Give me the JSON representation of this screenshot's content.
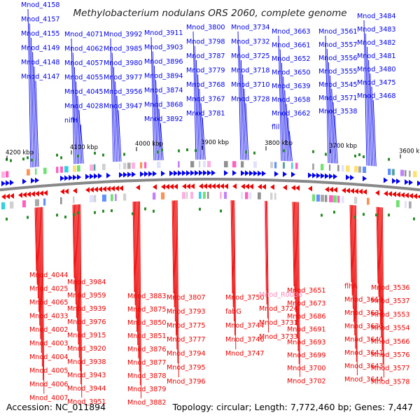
{
  "title": "Methylobacterium nodulans ORS 2060, complete genome",
  "footer": {
    "accession": "Accession: NC_011894",
    "summary": "Topology: circular; Length: 7,772,460 bp; Genes: 7,447"
  },
  "colors": {
    "plus_strand": "#0000ee",
    "minus_strand": "#ee0000",
    "rna_label": "#ff88bb",
    "backbone": "#888888",
    "gc_tick": "#2a8a2a"
  },
  "scale_labels": [
    "4200 kbp",
    "4100 kbp",
    "4000 kbp",
    "3900 kbp",
    "3800 kbp",
    "3700 kbp",
    "3600 kbp"
  ],
  "top_labels": [
    "Mnod_4158",
    "Mnod_4157",
    "Mnod_4155",
    "Mnod_4149",
    "Mnod_4148",
    "Mnod_4147",
    "Mnod_4071",
    "Mnod_4062",
    "Mnod_4057",
    "Mnod_4055",
    "Mnod_4045",
    "Mnod_4028",
    "nifH",
    "Mnod_3992",
    "Mnod_3985",
    "Mnod_3980",
    "Mnod_3977",
    "Mnod_3956",
    "Mnod_3947",
    "Mnod_3911",
    "Mnod_3903",
    "Mnod_3896",
    "Mnod_3894",
    "Mnod_3874",
    "Mnod_3868",
    "Mnod_3892",
    "Mnod_3800",
    "Mnod_3798",
    "Mnod_3787",
    "Mnod_3779",
    "Mnod_3768",
    "Mnod_3767",
    "Mnod_3781",
    "Mnod_3734",
    "Mnod_3732",
    "Mnod_3725",
    "Mnod_3718",
    "Mnod_3710",
    "Mnod_3728",
    "Mnod_3663",
    "Mnod_3661",
    "Mnod_3652",
    "Mnod_3650",
    "Mnod_3639",
    "Mnod_3658",
    "Mnod_3662",
    "flil",
    "Mnod_3561",
    "Mnod_3557",
    "Mnod_3556",
    "Mnod_3555",
    "Mnod_3545",
    "Mnod_3571",
    "Mnod_3538",
    "Mnod_3484",
    "Mnod_3483",
    "Mnod_3482",
    "Mnod_3481",
    "Mnod_3480",
    "Mnod_3475",
    "Mnod_3468"
  ],
  "bottom_labels": [
    "Mnod_4044",
    "Mnod_4025",
    "Mnod_4065",
    "Mnod_4033",
    "Mnod_4002",
    "Mnod_4003",
    "Mnod_4004",
    "Mnod_4005",
    "Mnod_4006",
    "Mnod_4007",
    "Mnod_3984",
    "Mnod_3959",
    "Mnod_3939",
    "Mnod_3976",
    "Mnod_3915",
    "Mnod_3920",
    "Mnod_3938",
    "Mnod_3943",
    "Mnod_3944",
    "Mnod_3951",
    "Mnod_3883",
    "Mnod_3875",
    "Mnod_3850",
    "Mnod_3851",
    "Mnod_3876",
    "Mnod_3877",
    "Mnod_3878",
    "Mnod_3879",
    "Mnod_3882",
    "Mnod_3807",
    "Mnod_3793",
    "Mnod_3775",
    "Mnod_3777",
    "Mnod_3794",
    "Mnod_3795",
    "Mnod_3796",
    "Mnod_3750",
    "fabG",
    "Mnod_3744",
    "Mnod_3746",
    "Mnod_3747",
    "Mnod_R0036",
    "Mnod_3724",
    "Mnod_3731",
    "Mnod_3733",
    "Mnod_3651",
    "Mnod_3673",
    "Mnod_3686",
    "Mnod_3691",
    "Mnod_3693",
    "Mnod_3699",
    "Mnod_3700",
    "Mnod_3702",
    "flhA",
    "Mnod_3619",
    "Mnod_3632",
    "Mnod_3636",
    "Mnod_3640",
    "Mnod_3641",
    "Mnod_3643",
    "Mnod_3644",
    "Mnod_3536",
    "Mnod_3537",
    "Mnod_3553",
    "Mnod_3554",
    "Mnod_3566",
    "Mnod_3576",
    "Mnod_3577",
    "Mnod_3578"
  ]
}
